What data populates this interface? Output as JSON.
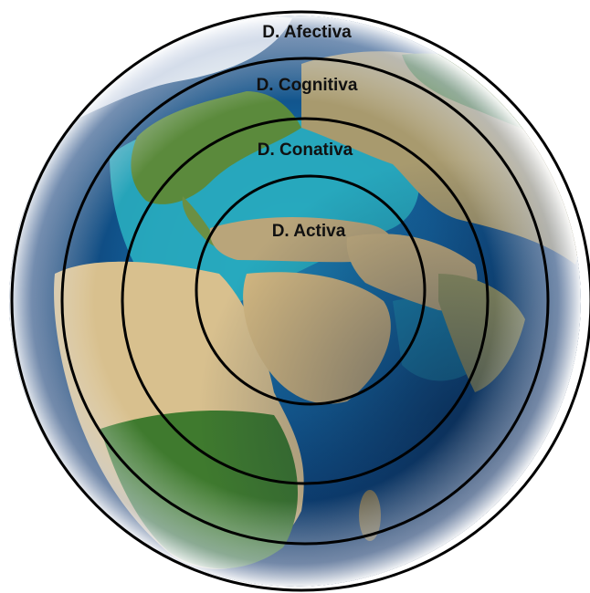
{
  "diagram": {
    "rings": [
      {
        "label": "D. Afectiva"
      },
      {
        "label": "D. Cognitiva"
      },
      {
        "label": "D. Conativa"
      },
      {
        "label": "D. Activa"
      }
    ]
  },
  "colors": {
    "ring_stroke": "#000000",
    "label_text": "#111111",
    "ocean_deep": "#0b3a6e",
    "ocean_shallow": "#2ab3c2",
    "desert": "#d8c08e",
    "vegetation": "#3f7a2e",
    "ice": "#eef3f5"
  },
  "icons": {
    "globe": "earth-globe-icon"
  }
}
